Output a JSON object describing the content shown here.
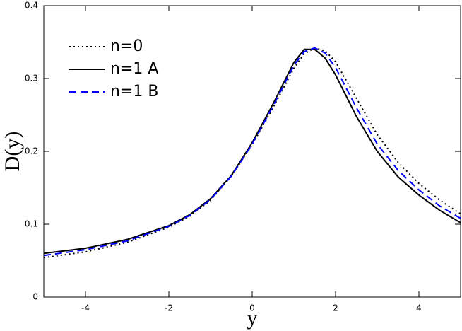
{
  "chart_data": {
    "type": "line",
    "x_label": "y",
    "y_label": "D(y)",
    "x": [
      -5,
      -4,
      -3,
      -2,
      -1.5,
      -1,
      -0.5,
      0,
      0.5,
      1,
      1.25,
      1.5,
      1.75,
      2,
      2.5,
      3,
      3.5,
      4,
      4.5,
      5
    ],
    "series": [
      {
        "name": "n=0",
        "color": "#000000",
        "line_style": "dotted",
        "values": [
          0.054,
          0.062,
          0.075,
          0.096,
          0.111,
          0.133,
          0.166,
          0.209,
          0.26,
          0.314,
          0.334,
          0.342,
          0.338,
          0.323,
          0.273,
          0.223,
          0.185,
          0.156,
          0.133,
          0.114
        ]
      },
      {
        "name": "n=1 A",
        "color": "#000000",
        "line_style": "solid",
        "values": [
          0.06,
          0.067,
          0.079,
          0.098,
          0.113,
          0.135,
          0.167,
          0.212,
          0.265,
          0.322,
          0.34,
          0.34,
          0.328,
          0.305,
          0.248,
          0.2,
          0.165,
          0.14,
          0.119,
          0.102
        ]
      },
      {
        "name": "n=1 B",
        "color": "#0000ff",
        "line_style": "dashed",
        "values": [
          0.057,
          0.065,
          0.077,
          0.097,
          0.112,
          0.134,
          0.166,
          0.21,
          0.262,
          0.318,
          0.337,
          0.342,
          0.335,
          0.315,
          0.26,
          0.21,
          0.174,
          0.147,
          0.125,
          0.108
        ]
      }
    ],
    "xlim": [
      -5,
      5
    ],
    "ylim": [
      0,
      0.4
    ],
    "xticks": [
      -4,
      -2,
      0,
      2,
      4
    ],
    "yticks": [
      0,
      0.1,
      0.2,
      0.3,
      0.4
    ],
    "grid": false,
    "legend": "upper-left"
  }
}
